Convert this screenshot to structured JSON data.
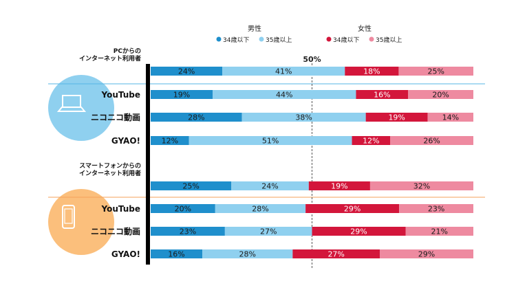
{
  "chart_data": {
    "type": "bar",
    "stacked": "percent",
    "orientation": "horizontal",
    "midline_label": "50%",
    "legend": {
      "groups": [
        {
          "title": "男性",
          "items": [
            {
              "label": "34歳以下",
              "color": "#1f8fcc"
            },
            {
              "label": "35歳以上",
              "color": "#8fd0ef"
            }
          ]
        },
        {
          "title": "女性",
          "items": [
            {
              "label": "34歳以下",
              "color": "#d3163b"
            },
            {
              "label": "35歳以上",
              "color": "#ee8aa0"
            }
          ]
        }
      ]
    },
    "sections": [
      {
        "label_lines": [
          "PCからの",
          "インターネット利用者"
        ],
        "circle_color": "#8fd0ef",
        "icon": "laptop-icon",
        "rows": [
          {
            "label": "",
            "values": [
              24,
              41,
              18,
              25
            ]
          },
          {
            "label": "YouTube",
            "values": [
              19,
              44,
              16,
              20
            ]
          },
          {
            "label": "ニコニコ動画",
            "values": [
              28,
              38,
              19,
              14
            ]
          },
          {
            "label": "GYAO!",
            "values": [
              12,
              51,
              12,
              26
            ]
          }
        ]
      },
      {
        "label_lines": [
          "スマートフォンからの",
          "インターネット利用者"
        ],
        "circle_color": "#fbbf7c",
        "icon": "smartphone-icon",
        "rows": [
          {
            "label": "",
            "values": [
              25,
              24,
              19,
              32
            ]
          },
          {
            "label": "YouTube",
            "values": [
              20,
              28,
              29,
              23
            ]
          },
          {
            "label": "ニコニコ動画",
            "values": [
              23,
              27,
              29,
              21
            ]
          },
          {
            "label": "GYAO!",
            "values": [
              16,
              28,
              27,
              29
            ]
          }
        ]
      }
    ],
    "series_colors": [
      "#1f8fcc",
      "#8fd0ef",
      "#d3163b",
      "#ee8aa0"
    ],
    "value_suffix": "%"
  }
}
